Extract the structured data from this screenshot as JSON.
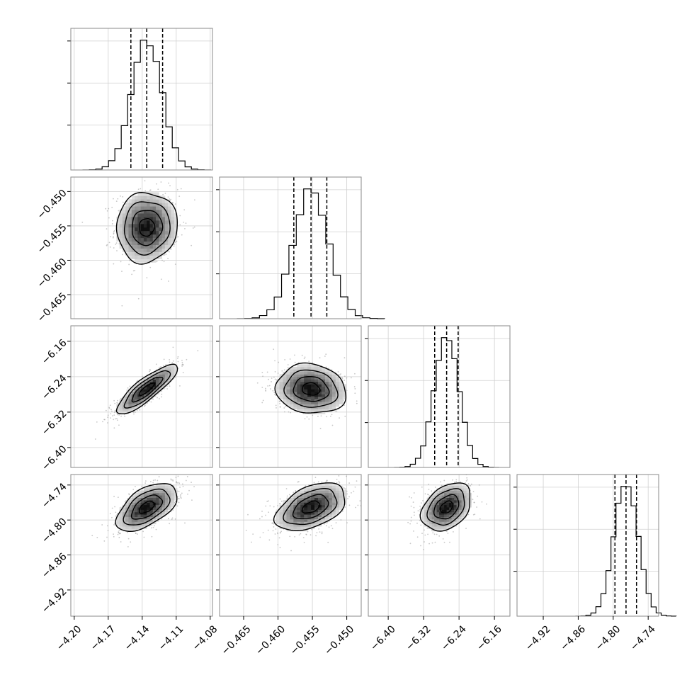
{
  "figure": {
    "background": "#ffffff",
    "frame_color": "#888888",
    "grid_color": "#d0d0d0"
  },
  "chart_data": {
    "type": "corner",
    "n_params": 4,
    "params": [
      {
        "index": 0,
        "range": [
          -4.203,
          -4.078
        ],
        "ticks": [
          -4.2,
          -4.17,
          -4.14,
          -4.11,
          -4.08
        ],
        "tick_labels": [
          "−4.20",
          "−4.17",
          "−4.14",
          "−4.11",
          "−4.08"
        ],
        "mean": -4.136,
        "sigma": 0.0134,
        "quantiles": [
          -4.15,
          -4.136,
          -4.122
        ]
      },
      {
        "index": 1,
        "range": [
          -0.4685,
          -0.4479
        ],
        "ticks": [
          -0.465,
          -0.46,
          -0.455,
          -0.45
        ],
        "tick_labels": [
          "−0.465",
          "−0.460",
          "−0.455",
          "−0.450"
        ],
        "mean": -0.4552,
        "sigma": 0.00255,
        "quantiles": [
          -0.4577,
          -0.4552,
          -0.4529
        ]
      },
      {
        "index": 2,
        "range": [
          -6.445,
          -6.125
        ],
        "ticks": [
          -6.4,
          -6.32,
          -6.24,
          -6.16
        ],
        "tick_labels": [
          "−6.40",
          "−6.32",
          "−6.24",
          "−6.16"
        ],
        "mean": -6.268,
        "sigma": 0.028,
        "quantiles": [
          -6.295,
          -6.268,
          -6.242
        ]
      },
      {
        "index": 3,
        "range": [
          -4.965,
          -4.722
        ],
        "ticks": [
          -4.92,
          -4.86,
          -4.8,
          -4.74
        ],
        "tick_labels": [
          "−4.92",
          "−4.86",
          "−4.80",
          "−4.74"
        ],
        "mean": -4.778,
        "sigma": 0.0205,
        "quantiles": [
          -4.797,
          -4.778,
          -4.76
        ]
      }
    ],
    "correlations": [
      [
        1,
        0.05,
        0.85,
        0.55
      ],
      [
        0.05,
        1,
        -0.1,
        0.45
      ],
      [
        0.85,
        -0.1,
        1,
        0.35
      ],
      [
        0.55,
        0.45,
        0.35,
        1
      ]
    ],
    "histogram_bins": 20,
    "contour_levels_sigma": [
      0.5,
      1.0,
      1.5,
      2.0
    ],
    "scatter_points_per_panel": 700,
    "grid": true,
    "quantile_line_style": "dashed"
  }
}
